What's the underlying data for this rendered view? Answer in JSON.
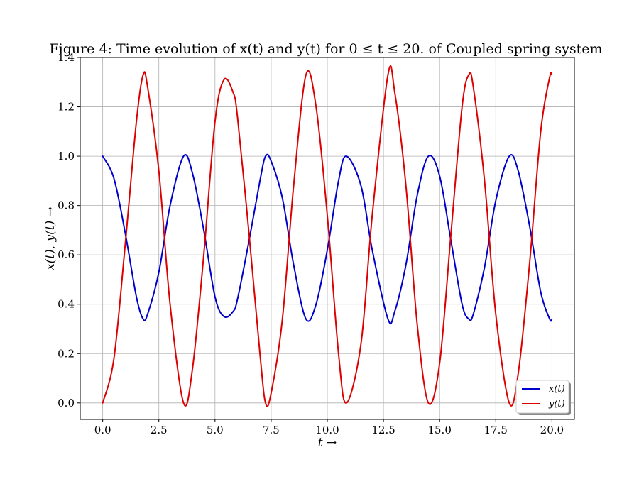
{
  "chart_data": {
    "type": "line",
    "title": "Figure 4: Time evolution of x(t) and y(t) for 0 ≤ t ≤ 20. of Coupled spring system",
    "xlabel": "t →",
    "ylabel": "x(t), y(t) →",
    "xlim": [
      -1.0,
      21.0
    ],
    "ylim": [
      -0.0667,
      1.4
    ],
    "xticks": [
      0.0,
      2.5,
      5.0,
      7.5,
      10.0,
      12.5,
      15.0,
      17.5,
      20.0
    ],
    "xtick_labels": [
      "0.0",
      "2.5",
      "5.0",
      "7.5",
      "10.0",
      "12.5",
      "15.0",
      "17.5",
      "20.0"
    ],
    "yticks": [
      0.0,
      0.2,
      0.4,
      0.6,
      0.8,
      1.0,
      1.2,
      1.4
    ],
    "ytick_labels": [
      "0.0",
      "0.2",
      "0.4",
      "0.6",
      "0.8",
      "1.0",
      "1.2",
      "1.4"
    ],
    "grid": true,
    "legend_position": "bottom-right",
    "series": [
      {
        "name": "x(t)",
        "color": "#0000cc",
        "x": [
          0.0,
          0.5,
          1.0,
          1.5,
          1.8,
          2.0,
          2.5,
          3.0,
          3.6,
          4.0,
          4.5,
          5.0,
          5.4,
          5.8,
          6.0,
          6.5,
          7.0,
          7.25,
          7.5,
          8.0,
          8.5,
          9.05,
          9.5,
          10.0,
          10.5,
          10.85,
          11.5,
          12.0,
          12.7,
          13.0,
          13.5,
          14.0,
          14.5,
          15.0,
          15.5,
          16.0,
          16.3,
          16.5,
          17.0,
          17.5,
          18.1,
          18.5,
          19.0,
          19.5,
          19.9,
          20.0
        ],
        "y": [
          1.0,
          0.91,
          0.69,
          0.43,
          0.34,
          0.36,
          0.53,
          0.8,
          1.0,
          0.93,
          0.7,
          0.43,
          0.35,
          0.37,
          0.42,
          0.65,
          0.9,
          1.0,
          0.98,
          0.83,
          0.56,
          0.34,
          0.4,
          0.62,
          0.9,
          1.0,
          0.88,
          0.62,
          0.34,
          0.37,
          0.56,
          0.84,
          1.0,
          0.92,
          0.66,
          0.4,
          0.34,
          0.36,
          0.55,
          0.82,
          1.0,
          0.94,
          0.72,
          0.45,
          0.34,
          0.34
        ]
      },
      {
        "name": "y(t)",
        "color": "#dd0000",
        "x": [
          0.0,
          0.5,
          1.0,
          1.5,
          1.8,
          2.0,
          2.5,
          3.0,
          3.6,
          4.0,
          4.5,
          5.0,
          5.4,
          5.8,
          6.0,
          6.5,
          7.0,
          7.25,
          7.5,
          8.0,
          8.5,
          9.05,
          9.5,
          10.0,
          10.5,
          10.85,
          11.5,
          12.0,
          12.7,
          13.0,
          13.5,
          14.0,
          14.5,
          15.0,
          15.5,
          16.0,
          16.3,
          16.5,
          17.0,
          17.5,
          18.1,
          18.5,
          19.0,
          19.5,
          19.9,
          20.0
        ],
        "y": [
          0.0,
          0.18,
          0.64,
          1.14,
          1.33,
          1.28,
          0.94,
          0.4,
          0.0,
          0.14,
          0.6,
          1.14,
          1.31,
          1.26,
          1.16,
          0.7,
          0.2,
          0.0,
          0.04,
          0.34,
          0.88,
          1.33,
          1.2,
          0.76,
          0.2,
          0.0,
          0.24,
          0.76,
          1.33,
          1.26,
          0.88,
          0.32,
          0.0,
          0.16,
          0.68,
          1.2,
          1.33,
          1.28,
          0.9,
          0.36,
          0.0,
          0.12,
          0.56,
          1.1,
          1.32,
          1.33
        ]
      }
    ]
  }
}
